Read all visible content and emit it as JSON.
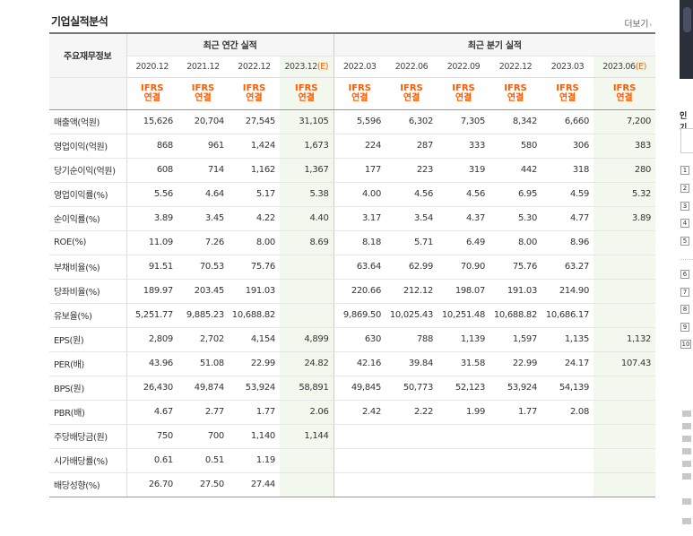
{
  "section": {
    "title": "기업실적분석",
    "more_label": "더보기",
    "more_arrow": "›"
  },
  "table": {
    "row_header": "주요재무정보",
    "group_annual": "최근 연간 실적",
    "group_quarterly": "최근 분기 실적",
    "periods": [
      {
        "label": "2020.12",
        "est": ""
      },
      {
        "label": "2021.12",
        "est": ""
      },
      {
        "label": "2022.12",
        "est": ""
      },
      {
        "label": "2023.12",
        "est": "(E)"
      },
      {
        "label": "2022.03",
        "est": ""
      },
      {
        "label": "2022.06",
        "est": ""
      },
      {
        "label": "2022.09",
        "est": ""
      },
      {
        "label": "2022.12",
        "est": ""
      },
      {
        "label": "2023.03",
        "est": ""
      },
      {
        "label": "2023.06",
        "est": "(E)"
      }
    ],
    "basis_line1": "IFRS",
    "basis_line2": "연결",
    "rows": [
      {
        "label": "매출액(억원)",
        "values": [
          "15,626",
          "20,704",
          "27,545",
          "31,105",
          "5,596",
          "6,302",
          "7,305",
          "8,342",
          "6,660",
          "7,200"
        ]
      },
      {
        "label": "영업이익(억원)",
        "values": [
          "868",
          "961",
          "1,424",
          "1,673",
          "224",
          "287",
          "333",
          "580",
          "306",
          "383"
        ]
      },
      {
        "label": "당기순이익(억원)",
        "values": [
          "608",
          "714",
          "1,162",
          "1,367",
          "177",
          "223",
          "319",
          "442",
          "318",
          "280"
        ]
      },
      {
        "label": "영업이익률(%)",
        "values": [
          "5.56",
          "4.64",
          "5.17",
          "5.38",
          "4.00",
          "4.56",
          "4.56",
          "6.95",
          "4.59",
          "5.32"
        ]
      },
      {
        "label": "순이익률(%)",
        "values": [
          "3.89",
          "3.45",
          "4.22",
          "4.40",
          "3.17",
          "3.54",
          "4.37",
          "5.30",
          "4.77",
          "3.89"
        ]
      },
      {
        "label": "ROE(%)",
        "values": [
          "11.09",
          "7.26",
          "8.00",
          "8.69",
          "8.18",
          "5.71",
          "6.49",
          "8.00",
          "8.96",
          ""
        ]
      },
      {
        "label": "부채비율(%)",
        "values": [
          "91.51",
          "70.53",
          "75.76",
          "",
          "63.64",
          "62.99",
          "70.90",
          "75.76",
          "63.27",
          ""
        ]
      },
      {
        "label": "당좌비율(%)",
        "values": [
          "189.97",
          "203.45",
          "191.03",
          "",
          "220.66",
          "212.12",
          "198.07",
          "191.03",
          "214.90",
          ""
        ]
      },
      {
        "label": "유보율(%)",
        "values": [
          "5,251.77",
          "9,885.23",
          "10,688.82",
          "",
          "9,869.50",
          "10,025.43",
          "10,251.48",
          "10,688.82",
          "10,686.17",
          ""
        ]
      },
      {
        "label": "EPS(원)",
        "values": [
          "2,809",
          "2,702",
          "4,154",
          "4,899",
          "630",
          "788",
          "1,139",
          "1,597",
          "1,135",
          "1,132"
        ]
      },
      {
        "label": "PER(배)",
        "values": [
          "43.96",
          "51.08",
          "22.99",
          "24.82",
          "42.16",
          "39.84",
          "31.58",
          "22.99",
          "24.17",
          "107.43"
        ]
      },
      {
        "label": "BPS(원)",
        "values": [
          "26,430",
          "49,874",
          "53,924",
          "58,891",
          "49,845",
          "50,773",
          "52,123",
          "53,924",
          "54,139",
          ""
        ]
      },
      {
        "label": "PBR(배)",
        "values": [
          "4.67",
          "2.77",
          "1.77",
          "2.06",
          "2.42",
          "2.22",
          "1.99",
          "1.77",
          "2.08",
          ""
        ]
      },
      {
        "label": "주당배당금(원)",
        "values": [
          "750",
          "700",
          "1,140",
          "1,144",
          "",
          "",
          "",
          "",
          "",
          ""
        ]
      },
      {
        "label": "시가배당률(%)",
        "values": [
          "0.61",
          "0.51",
          "1.19",
          "",
          "",
          "",
          "",
          "",
          "",
          ""
        ]
      },
      {
        "label": "배당성향(%)",
        "values": [
          "26.70",
          "27.50",
          "27.44",
          "",
          "",
          "",
          "",
          "",
          "",
          ""
        ]
      }
    ]
  },
  "sidebar": {
    "title": "인기",
    "ranks": [
      "1",
      "2",
      "3",
      "4",
      "5",
      "6",
      "7",
      "8",
      "9",
      "10"
    ]
  },
  "colors": {
    "ifrs_orange": "#ff5a00",
    "estimate_bg": "#f3f8ee"
  }
}
